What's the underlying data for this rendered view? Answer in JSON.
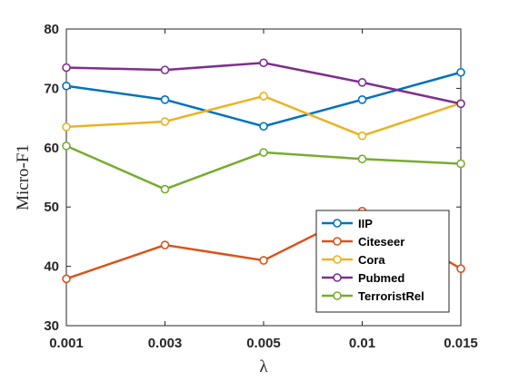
{
  "chart_data": {
    "type": "line",
    "categories": [
      "0.001",
      "0.003",
      "0.005",
      "0.01",
      "0.015"
    ],
    "xlabel": "λ",
    "ylabel": "Micro-F1",
    "ylim": [
      30,
      80
    ],
    "yticks": [
      30,
      40,
      50,
      60,
      70,
      80
    ],
    "grid": false,
    "legend_position": "bottom-right",
    "series": [
      {
        "name": "IIP",
        "color": "#0072BD",
        "values": [
          70.4,
          68.1,
          63.6,
          68.1,
          72.7
        ]
      },
      {
        "name": "Citeseer",
        "color": "#D95319",
        "values": [
          37.9,
          43.6,
          41.0,
          49.3,
          39.6
        ]
      },
      {
        "name": "Cora",
        "color": "#EDB120",
        "values": [
          63.5,
          64.4,
          68.7,
          62.0,
          67.5
        ]
      },
      {
        "name": "Pubmed",
        "color": "#7E2F8E",
        "values": [
          73.5,
          73.1,
          74.3,
          71.0,
          67.4
        ]
      },
      {
        "name": "TerroristRel",
        "color": "#77AC30",
        "values": [
          60.3,
          53.0,
          59.2,
          58.1,
          57.3
        ]
      }
    ]
  }
}
